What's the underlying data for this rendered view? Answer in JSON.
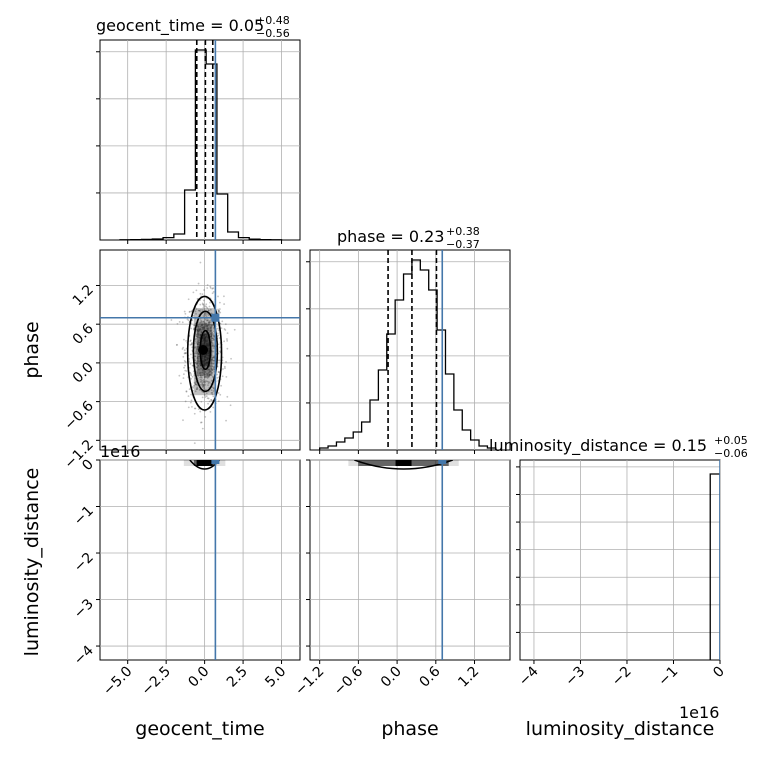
{
  "colors": {
    "truth": "#4477aa",
    "hist": "#000000",
    "grid": "#b0b0b0",
    "scatter": "#555555"
  },
  "titles": {
    "geocent_time": {
      "name": "geocent_time",
      "value": "0.05",
      "plus": "+0.48",
      "minus": "−0.56"
    },
    "phase": {
      "name": "phase",
      "value": "0.23",
      "plus": "+0.38",
      "minus": "−0.37"
    },
    "luminosity_distance": {
      "name": "luminosity_distance",
      "value": "0.15",
      "plus": "+0.05",
      "minus": "−0.06"
    }
  },
  "axis_labels": {
    "geocent_time": "geocent_time",
    "phase": "phase",
    "luminosity_distance": "luminosity_distance"
  },
  "offset_labels": {
    "ld_y": "1e16",
    "ld_x": "1e16"
  },
  "chart_data": {
    "type": "corner",
    "parameters": [
      "geocent_time",
      "phase",
      "luminosity_distance"
    ],
    "truths": {
      "geocent_time": 0.7,
      "phase": 0.7,
      "luminosity_distance": 0.0
    },
    "ranges": {
      "geocent_time": [
        -6.8,
        6.2
      ],
      "phase": [
        -1.35,
        1.75
      ],
      "luminosity_distance": [
        -4.3,
        0.0
      ]
    },
    "ticks": {
      "geocent_time": {
        "values": [
          -5.0,
          -2.5,
          0.0,
          2.5,
          5.0
        ],
        "labels": [
          "−5.0",
          "−2.5",
          "0.0",
          "2.5",
          "5.0"
        ]
      },
      "phase": {
        "values": [
          -1.2,
          -0.6,
          0.0,
          0.6,
          1.2
        ],
        "labels": [
          "−1.2",
          "−0.6",
          "0.0",
          "0.6",
          "1.2"
        ]
      },
      "luminosity_distance": {
        "values": [
          -4,
          -3,
          -2,
          -1,
          0
        ],
        "labels": [
          "−4",
          "−3",
          "−2",
          "−1",
          "0"
        ]
      }
    },
    "quantiles": {
      "geocent_time": [
        -0.51,
        0.05,
        0.53
      ],
      "phase": [
        -0.14,
        0.23,
        0.61
      ]
    },
    "histograms": {
      "geocent_time": {
        "edges": [
          -5.5,
          -4.8,
          -4.1,
          -3.4,
          -2.7,
          -2.0,
          -1.3,
          -0.6,
          0.1,
          0.8,
          1.5,
          2.2,
          2.9,
          3.6,
          4.3,
          5.0
        ],
        "counts": [
          0.001,
          0.002,
          0.003,
          0.005,
          0.012,
          0.03,
          0.25,
          0.95,
          0.88,
          0.23,
          0.04,
          0.012,
          0.004,
          0.002,
          0.001
        ]
      },
      "phase": {
        "edges": [
          -1.2,
          -1.07,
          -0.94,
          -0.81,
          -0.68,
          -0.55,
          -0.42,
          -0.29,
          -0.16,
          -0.03,
          0.1,
          0.23,
          0.36,
          0.49,
          0.62,
          0.75,
          0.88,
          1.01,
          1.14,
          1.27,
          1.4,
          1.53
        ],
        "counts": [
          0.01,
          0.02,
          0.04,
          0.06,
          0.09,
          0.14,
          0.25,
          0.4,
          0.58,
          0.75,
          0.88,
          0.95,
          0.9,
          0.8,
          0.6,
          0.38,
          0.2,
          0.1,
          0.05,
          0.02,
          0.01
        ]
      },
      "luminosity_distance": {
        "edges": [
          -0.21,
          -0.01,
          0.0
        ],
        "counts": [
          0.93,
          0.93
        ]
      }
    },
    "contour_levels": [
      {
        "cx": 0.0,
        "cy": 0.15,
        "rx": 1.1,
        "ry": 0.88
      },
      {
        "cx": 0.05,
        "cy": 0.18,
        "rx": 0.78,
        "ry": 0.62
      },
      {
        "cx": 0.05,
        "cy": 0.2,
        "rx": 0.33,
        "ry": 0.3
      }
    ]
  }
}
